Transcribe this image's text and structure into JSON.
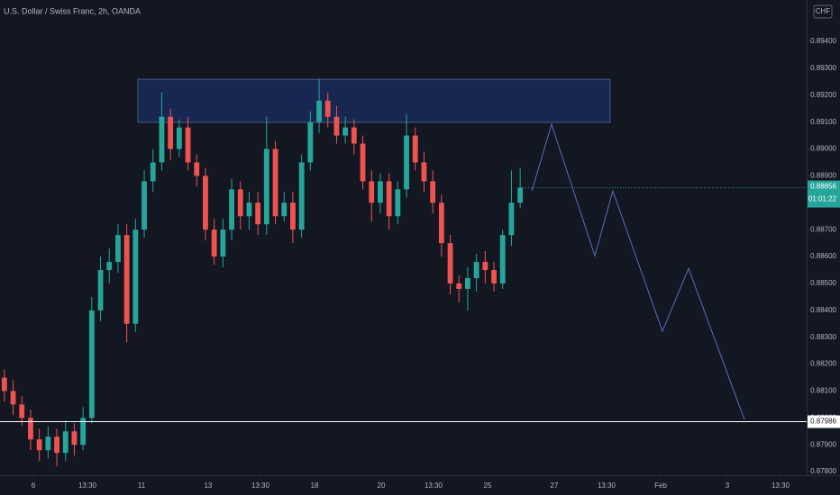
{
  "chart_data": {
    "type": "candlestick",
    "title": "U.S. Dollar / Swiss Franc, 2h, OANDA",
    "currency": "CHF",
    "up_color": "#26a69a",
    "down_color": "#ef5350",
    "x": [
      0,
      1,
      2,
      3,
      4,
      5,
      6,
      7,
      8,
      9,
      10,
      11,
      12,
      13,
      14,
      15,
      16,
      17,
      18,
      19,
      20,
      21,
      22,
      23,
      24,
      25,
      26,
      27,
      28,
      29,
      30,
      31,
      32,
      33,
      34,
      35,
      36,
      37,
      38,
      39,
      40,
      41,
      42,
      43,
      44,
      45,
      46,
      47,
      48,
      49,
      50,
      51,
      52,
      53,
      54,
      55,
      56,
      57,
      58,
      59
    ],
    "open": [
      0.8815,
      0.881,
      0.8805,
      0.88,
      0.8792,
      0.8788,
      0.8793,
      0.8787,
      0.8795,
      0.879,
      0.88,
      0.884,
      0.8855,
      0.8858,
      0.8868,
      0.8835,
      0.887,
      0.8888,
      0.8895,
      0.8912,
      0.89,
      0.8908,
      0.8895,
      0.889,
      0.887,
      0.886,
      0.887,
      0.8885,
      0.8875,
      0.888,
      0.8872,
      0.89,
      0.8875,
      0.888,
      0.887,
      0.8895,
      0.891,
      0.8918,
      0.8912,
      0.8905,
      0.8908,
      0.8902,
      0.8888,
      0.888,
      0.8888,
      0.8875,
      0.8885,
      0.8905,
      0.8895,
      0.8888,
      0.888,
      0.8865,
      0.885,
      0.8848,
      0.8852,
      0.8858,
      0.8855,
      0.885,
      0.8868,
      0.888
    ],
    "high": [
      0.8818,
      0.8814,
      0.8808,
      0.8803,
      0.8796,
      0.8797,
      0.8796,
      0.8799,
      0.8798,
      0.8804,
      0.8845,
      0.886,
      0.8863,
      0.8872,
      0.8872,
      0.8874,
      0.8892,
      0.89,
      0.8921,
      0.8915,
      0.8911,
      0.8912,
      0.8898,
      0.8893,
      0.8874,
      0.8874,
      0.8889,
      0.8888,
      0.8884,
      0.8884,
      0.8912,
      0.8903,
      0.8884,
      0.8884,
      0.8898,
      0.8914,
      0.8926,
      0.8921,
      0.8916,
      0.8912,
      0.8911,
      0.8905,
      0.8892,
      0.8891,
      0.8891,
      0.8888,
      0.8913,
      0.8908,
      0.8899,
      0.8892,
      0.8883,
      0.8868,
      0.8853,
      0.8856,
      0.8861,
      0.8862,
      0.8858,
      0.887,
      0.8892,
      0.8893
    ],
    "low": [
      0.8806,
      0.8801,
      0.8797,
      0.8788,
      0.8784,
      0.8785,
      0.8782,
      0.8784,
      0.8786,
      0.8788,
      0.8798,
      0.8836,
      0.885,
      0.8854,
      0.8828,
      0.8832,
      0.8867,
      0.8884,
      0.8892,
      0.8896,
      0.8897,
      0.8892,
      0.8886,
      0.8866,
      0.8857,
      0.8856,
      0.8866,
      0.887,
      0.887,
      0.8868,
      0.8868,
      0.8872,
      0.8873,
      0.8865,
      0.8867,
      0.8892,
      0.8906,
      0.8908,
      0.8902,
      0.8902,
      0.8898,
      0.8885,
      0.8873,
      0.8876,
      0.887,
      0.8872,
      0.8882,
      0.8892,
      0.8884,
      0.8876,
      0.886,
      0.8846,
      0.8843,
      0.884,
      0.8847,
      0.885,
      0.8847,
      0.8848,
      0.8864,
      0.8878
    ],
    "close": [
      0.881,
      0.8805,
      0.88,
      0.8792,
      0.8788,
      0.8793,
      0.8787,
      0.8795,
      0.879,
      0.88,
      0.884,
      0.8855,
      0.8858,
      0.8868,
      0.8835,
      0.887,
      0.8888,
      0.8895,
      0.8912,
      0.89,
      0.8908,
      0.8895,
      0.889,
      0.887,
      0.886,
      0.887,
      0.8885,
      0.8875,
      0.888,
      0.8872,
      0.89,
      0.8875,
      0.888,
      0.887,
      0.8895,
      0.891,
      0.8918,
      0.8912,
      0.8905,
      0.8908,
      0.8902,
      0.8888,
      0.888,
      0.8888,
      0.8875,
      0.8885,
      0.8905,
      0.8895,
      0.8888,
      0.888,
      0.8865,
      0.885,
      0.8848,
      0.8852,
      0.8858,
      0.8855,
      0.885,
      0.8868,
      0.888,
      0.88856
    ],
    "xlim": [
      -0.5,
      91.77
    ],
    "ylim": [
      0.87787,
      0.89554
    ],
    "xticks": [
      {
        "value": 3.31,
        "label": "6"
      },
      {
        "value": 9.5,
        "label": "13:30"
      },
      {
        "value": 15.69,
        "label": "11"
      },
      {
        "value": 23.31,
        "label": "13"
      },
      {
        "value": 29.29,
        "label": "13:30"
      },
      {
        "value": 35.48,
        "label": "18"
      },
      {
        "value": 43.11,
        "label": "20"
      },
      {
        "value": 49.09,
        "label": "13:30"
      },
      {
        "value": 55.27,
        "label": "25"
      },
      {
        "value": 62.9,
        "label": "27"
      },
      {
        "value": 68.88,
        "label": "13:30"
      },
      {
        "value": 75.07,
        "label": "Feb"
      },
      {
        "value": 82.7,
        "label": "3"
      },
      {
        "value": 88.78,
        "label": "13:30"
      }
    ],
    "yticks": [
      {
        "value": 0.878,
        "label": "0.87800"
      },
      {
        "value": 0.879,
        "label": "0.87900"
      },
      {
        "value": 0.88,
        "label": "0.88000"
      },
      {
        "value": 0.881,
        "label": "0.88100"
      },
      {
        "value": 0.882,
        "label": "0.88200"
      },
      {
        "value": 0.883,
        "label": "0.88300"
      },
      {
        "value": 0.884,
        "label": "0.88400"
      },
      {
        "value": 0.885,
        "label": "0.88500"
      },
      {
        "value": 0.886,
        "label": "0.88600"
      },
      {
        "value": 0.887,
        "label": "0.88700"
      },
      {
        "value": 0.888,
        "label": "0.88800"
      },
      {
        "value": 0.889,
        "label": "0.88900"
      },
      {
        "value": 0.89,
        "label": "0.89000"
      },
      {
        "value": 0.891,
        "label": "0.89100"
      },
      {
        "value": 0.892,
        "label": "0.89200"
      },
      {
        "value": 0.893,
        "label": "0.89300"
      },
      {
        "value": 0.894,
        "label": "0.89400"
      }
    ],
    "zone": {
      "x": [
        15.27,
        69.29
      ],
      "y": [
        0.89099,
        0.89259
      ]
    },
    "projection": {
      "x": [
        60.33,
        62.59,
        67.54,
        69.6,
        75.27,
        78.26,
        84.65
      ],
      "values": [
        0.88844,
        0.89092,
        0.88603,
        0.88844,
        0.88322,
        0.88556,
        0.87994
      ]
    },
    "hline": 0.87986,
    "last_price": 0.88856,
    "countdown": "01:01:22"
  }
}
